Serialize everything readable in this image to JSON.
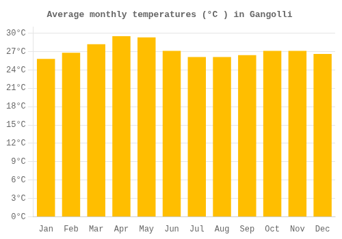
{
  "chart_data": {
    "type": "bar",
    "title": "Average monthly temperatures (°C ) in Gangolli",
    "categories": [
      "Jan",
      "Feb",
      "Mar",
      "Apr",
      "May",
      "Jun",
      "Jul",
      "Aug",
      "Sep",
      "Oct",
      "Nov",
      "Dec"
    ],
    "values": [
      25.8,
      26.8,
      28.2,
      29.5,
      29.3,
      27.1,
      26.1,
      26.1,
      26.4,
      27.1,
      27.1,
      26.6
    ],
    "color": "#FFBE00",
    "ylim": [
      0,
      31
    ],
    "yticks": [
      {
        "value": 0,
        "label": "0°C"
      },
      {
        "value": 3,
        "label": "3°C"
      },
      {
        "value": 6,
        "label": "6°C"
      },
      {
        "value": 9,
        "label": "9°C"
      },
      {
        "value": 12,
        "label": "12°C"
      },
      {
        "value": 15,
        "label": "15°C"
      },
      {
        "value": 18,
        "label": "18°C"
      },
      {
        "value": 21,
        "label": "21°C"
      },
      {
        "value": 24,
        "label": "24°C"
      },
      {
        "value": 27,
        "label": "27°C"
      },
      {
        "value": 30,
        "label": "30°C"
      }
    ],
    "grid": true
  }
}
